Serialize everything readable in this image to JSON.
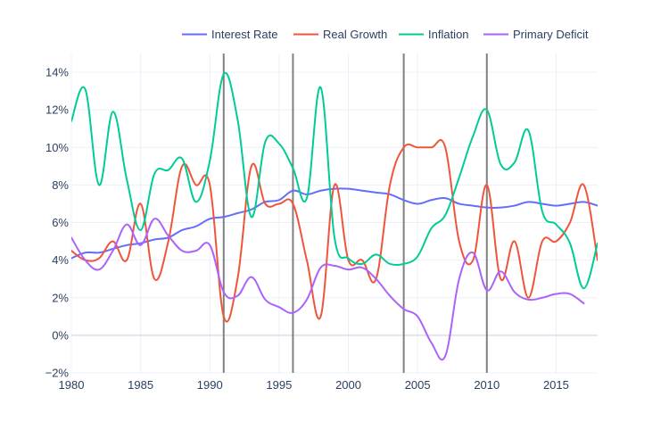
{
  "chart_data": {
    "type": "line",
    "title": "",
    "xlabel": "",
    "ylabel": "",
    "xlim": [
      1980,
      2018
    ],
    "ylim": [
      -2,
      15
    ],
    "x_ticks": [
      1980,
      1985,
      1990,
      1995,
      2000,
      2005,
      2010,
      2015
    ],
    "x_tick_labels": [
      "1980",
      "1985",
      "1990",
      "1995",
      "2000",
      "2005",
      "2010",
      "2015"
    ],
    "y_ticks": [
      -2,
      0,
      2,
      4,
      6,
      8,
      10,
      12,
      14
    ],
    "y_tick_labels": [
      "−2%",
      "0%",
      "2%",
      "4%",
      "6%",
      "8%",
      "10%",
      "12%",
      "14%"
    ],
    "grid": true,
    "legend_position": "top-right",
    "vertical_lines": [
      1991,
      1996,
      2004,
      2010
    ],
    "vertical_line_color": "#808080",
    "series": [
      {
        "name": "Interest Rate",
        "color": "#636efa",
        "points": [
          [
            1980,
            4.1
          ],
          [
            1981,
            4.4
          ],
          [
            1982,
            4.4
          ],
          [
            1983,
            4.6
          ],
          [
            1984,
            4.8
          ],
          [
            1985,
            4.9
          ],
          [
            1986,
            5.1
          ],
          [
            1987,
            5.2
          ],
          [
            1988,
            5.6
          ],
          [
            1989,
            5.8
          ],
          [
            1990,
            6.2
          ],
          [
            1991,
            6.3
          ],
          [
            1992,
            6.5
          ],
          [
            1993,
            6.7
          ],
          [
            1994,
            7.1
          ],
          [
            1995,
            7.2
          ],
          [
            1996,
            7.7
          ],
          [
            1997,
            7.5
          ],
          [
            1998,
            7.7
          ],
          [
            1999,
            7.8
          ],
          [
            2000,
            7.8
          ],
          [
            2001,
            7.7
          ],
          [
            2002,
            7.6
          ],
          [
            2003,
            7.5
          ],
          [
            2004,
            7.2
          ],
          [
            2005,
            7.0
          ],
          [
            2006,
            7.2
          ],
          [
            2007,
            7.3
          ],
          [
            2008,
            7.0
          ],
          [
            2009,
            6.9
          ],
          [
            2010,
            6.8
          ],
          [
            2011,
            6.8
          ],
          [
            2012,
            6.9
          ],
          [
            2013,
            7.1
          ],
          [
            2014,
            7.0
          ],
          [
            2015,
            6.9
          ],
          [
            2016,
            7.0
          ],
          [
            2017,
            7.1
          ],
          [
            2018,
            6.9
          ]
        ]
      },
      {
        "name": "Real Growth",
        "color": "#ef553b",
        "points": [
          [
            1980,
            4.5
          ],
          [
            1981,
            4.0
          ],
          [
            1982,
            4.1
          ],
          [
            1983,
            5.0
          ],
          [
            1984,
            4.0
          ],
          [
            1985,
            7.0
          ],
          [
            1986,
            3.0
          ],
          [
            1987,
            5.0
          ],
          [
            1988,
            9.0
          ],
          [
            1989,
            8.0
          ],
          [
            1990,
            8.0
          ],
          [
            1991,
            1.0
          ],
          [
            1992,
            3.0
          ],
          [
            1993,
            9.0
          ],
          [
            1994,
            7.0
          ],
          [
            1995,
            7.0
          ],
          [
            1996,
            7.0
          ],
          [
            1997,
            4.0
          ],
          [
            1998,
            1.0
          ],
          [
            1999,
            8.0
          ],
          [
            2000,
            4.0
          ],
          [
            2001,
            4.0
          ],
          [
            2002,
            3.0
          ],
          [
            2003,
            8.0
          ],
          [
            2004,
            10.0
          ],
          [
            2005,
            10.0
          ],
          [
            2006,
            10.0
          ],
          [
            2007,
            10.0
          ],
          [
            2008,
            5.0
          ],
          [
            2009,
            4.0
          ],
          [
            2010,
            8.0
          ],
          [
            2011,
            3.0
          ],
          [
            2012,
            5.0
          ],
          [
            2013,
            2.0
          ],
          [
            2014,
            5.0
          ],
          [
            2015,
            5.0
          ],
          [
            2016,
            6.0
          ],
          [
            2017,
            8.0
          ],
          [
            2018,
            4.0
          ]
        ]
      },
      {
        "name": "Inflation",
        "color": "#00cc96",
        "points": [
          [
            1980,
            11.4
          ],
          [
            1981,
            13.1
          ],
          [
            1982,
            8.0
          ],
          [
            1983,
            11.9
          ],
          [
            1984,
            8.3
          ],
          [
            1985,
            5.6
          ],
          [
            1986,
            8.6
          ],
          [
            1987,
            8.8
          ],
          [
            1988,
            9.4
          ],
          [
            1989,
            7.1
          ],
          [
            1990,
            9.3
          ],
          [
            1991,
            13.9
          ],
          [
            1992,
            11.5
          ],
          [
            1993,
            6.3
          ],
          [
            1994,
            10.3
          ],
          [
            1995,
            10.2
          ],
          [
            1996,
            8.9
          ],
          [
            1997,
            7.3
          ],
          [
            1998,
            13.2
          ],
          [
            1999,
            5.2
          ],
          [
            2000,
            4.1
          ],
          [
            2001,
            3.8
          ],
          [
            2002,
            4.3
          ],
          [
            2003,
            3.8
          ],
          [
            2004,
            3.8
          ],
          [
            2005,
            4.2
          ],
          [
            2006,
            5.7
          ],
          [
            2007,
            6.4
          ],
          [
            2008,
            8.4
          ],
          [
            2009,
            10.6
          ],
          [
            2010,
            12.0
          ],
          [
            2011,
            9.1
          ],
          [
            2012,
            9.2
          ],
          [
            2013,
            10.9
          ],
          [
            2014,
            6.6
          ],
          [
            2015,
            5.9
          ],
          [
            2016,
            4.9
          ],
          [
            2017,
            2.5
          ],
          [
            2018,
            4.9
          ]
        ]
      },
      {
        "name": "Primary Deficit",
        "color": "#ab63fa",
        "points": [
          [
            1980,
            5.2
          ],
          [
            1981,
            4.0
          ],
          [
            1982,
            3.5
          ],
          [
            1983,
            4.5
          ],
          [
            1984,
            5.9
          ],
          [
            1985,
            4.8
          ],
          [
            1986,
            6.2
          ],
          [
            1987,
            5.3
          ],
          [
            1988,
            4.5
          ],
          [
            1989,
            4.5
          ],
          [
            1990,
            4.8
          ],
          [
            1991,
            2.3
          ],
          [
            1992,
            2.1
          ],
          [
            1993,
            3.1
          ],
          [
            1994,
            1.9
          ],
          [
            1995,
            1.5
          ],
          [
            1996,
            1.2
          ],
          [
            1997,
            1.9
          ],
          [
            1998,
            3.6
          ],
          [
            1999,
            3.7
          ],
          [
            2000,
            3.5
          ],
          [
            2001,
            3.6
          ],
          [
            2002,
            3.0
          ],
          [
            2003,
            2.1
          ],
          [
            2004,
            1.4
          ],
          [
            2005,
            1.0
          ],
          [
            2006,
            -0.4
          ],
          [
            2007,
            -1.1
          ],
          [
            2008,
            3.0
          ],
          [
            2009,
            4.4
          ],
          [
            2010,
            2.4
          ],
          [
            2011,
            3.4
          ],
          [
            2012,
            2.3
          ],
          [
            2013,
            1.9
          ],
          [
            2014,
            2.0
          ],
          [
            2015,
            2.2
          ],
          [
            2016,
            2.2
          ],
          [
            2017,
            1.7
          ]
        ]
      }
    ]
  }
}
